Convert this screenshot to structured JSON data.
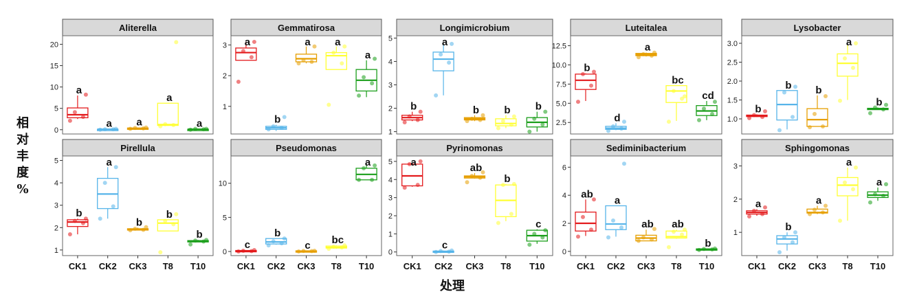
{
  "chart_data": {
    "type": "box",
    "ylabel": "相对丰度%",
    "ylabel_chars": [
      "相",
      "对",
      "丰",
      "度",
      "%"
    ],
    "xlabel": "处理",
    "categories": [
      "CK1",
      "CK2",
      "CK3",
      "T8",
      "T10"
    ],
    "colors": {
      "CK1": "#e31a1c",
      "CK2": "#56b4e9",
      "CK3": "#e69f00",
      "T8": "#ffff33",
      "T10": "#1a9e1a"
    },
    "layout": "2 rows x 5 facets",
    "panels": [
      {
        "title": "Aliterella",
        "ylim": [
          -1,
          22
        ],
        "yticks": [
          0,
          5,
          10,
          15,
          20
        ],
        "ytick_labels": [
          "0",
          "5",
          "10",
          "15",
          "20"
        ],
        "boxes": [
          {
            "group": "CK1",
            "min": 2.5,
            "q1": 2.8,
            "median": 3.5,
            "q3": 5.1,
            "max": 8.0,
            "points": [
              2.1,
              3.0,
              4.1,
              8.2
            ],
            "letter": "a"
          },
          {
            "group": "CK2",
            "min": 0.0,
            "q1": 0.0,
            "median": 0.1,
            "q3": 0.1,
            "max": 0.2,
            "points": [
              0.0,
              0.1,
              0.1,
              0.2
            ],
            "letter": "a"
          },
          {
            "group": "CK3",
            "min": 0.1,
            "q1": 0.2,
            "median": 0.3,
            "q3": 0.4,
            "max": 0.5,
            "points": [
              0.2,
              0.3,
              0.4,
              0.5
            ],
            "letter": "a"
          },
          {
            "group": "T8",
            "min": 0.9,
            "q1": 1.0,
            "median": 1.2,
            "q3": 6.2,
            "max": 6.2,
            "points": [
              0.8,
              1.1,
              1.3,
              20.5
            ],
            "letter": "a"
          },
          {
            "group": "T10",
            "min": 0.0,
            "q1": 0.0,
            "median": 0.1,
            "q3": 0.1,
            "max": 0.2,
            "points": [
              0.0,
              0.1,
              0.2,
              0.2
            ],
            "letter": "a"
          }
        ]
      },
      {
        "title": "Gemmatirosa",
        "ylim": [
          0.1,
          3.3
        ],
        "yticks": [
          1,
          2,
          3
        ],
        "ytick_labels": [
          "1",
          "2",
          "3"
        ],
        "boxes": [
          {
            "group": "CK1",
            "min": 2.5,
            "q1": 2.5,
            "median": 2.75,
            "q3": 2.9,
            "max": 3.1,
            "points": [
              1.8,
              2.6,
              2.8,
              3.1
            ],
            "letter": "a"
          },
          {
            "group": "CK2",
            "min": 0.2,
            "q1": 0.25,
            "median": 0.3,
            "q3": 0.35,
            "max": 0.4,
            "points": [
              0.25,
              0.3,
              0.35,
              0.65
            ],
            "letter": "b"
          },
          {
            "group": "CK3",
            "min": 2.4,
            "q1": 2.45,
            "median": 2.55,
            "q3": 2.7,
            "max": 2.95,
            "points": [
              2.4,
              2.45,
              2.5,
              2.95
            ],
            "letter": "a"
          },
          {
            "group": "T8",
            "min": 2.2,
            "q1": 2.2,
            "median": 2.65,
            "q3": 2.75,
            "max": 2.95,
            "points": [
              1.05,
              2.4,
              2.75,
              2.95
            ],
            "letter": "a"
          },
          {
            "group": "T10",
            "min": 1.3,
            "q1": 1.5,
            "median": 1.85,
            "q3": 2.2,
            "max": 2.5,
            "points": [
              1.35,
              1.75,
              1.95,
              2.55
            ],
            "letter": "a"
          }
        ]
      },
      {
        "title": "Longimicrobium",
        "ylim": [
          0.9,
          5.1
        ],
        "yticks": [
          1,
          2,
          3,
          4,
          5
        ],
        "ytick_labels": [
          "1",
          "2",
          "3",
          "4",
          "5"
        ],
        "boxes": [
          {
            "group": "CK1",
            "min": 1.45,
            "q1": 1.5,
            "median": 1.6,
            "q3": 1.7,
            "max": 1.85,
            "points": [
              1.4,
              1.5,
              1.65,
              1.85
            ],
            "letter": "b"
          },
          {
            "group": "CK2",
            "min": 2.55,
            "q1": 3.6,
            "median": 4.1,
            "q3": 4.4,
            "max": 4.75,
            "points": [
              2.55,
              3.95,
              4.3,
              4.75
            ],
            "letter": "a"
          },
          {
            "group": "CK3",
            "min": 1.45,
            "q1": 1.5,
            "median": 1.55,
            "q3": 1.6,
            "max": 1.7,
            "points": [
              1.45,
              1.5,
              1.55,
              1.7
            ],
            "letter": "b"
          },
          {
            "group": "T8",
            "min": 1.15,
            "q1": 1.25,
            "median": 1.35,
            "q3": 1.55,
            "max": 1.7,
            "points": [
              1.15,
              1.3,
              1.45,
              1.65
            ],
            "letter": "b"
          },
          {
            "group": "T10",
            "min": 1.0,
            "q1": 1.2,
            "median": 1.4,
            "q3": 1.6,
            "max": 1.85,
            "points": [
              1.0,
              1.3,
              1.55,
              1.85
            ],
            "letter": "b"
          }
        ]
      },
      {
        "title": "Luteitalea",
        "ylim": [
          1.0,
          13.8
        ],
        "yticks": [
          2.5,
          5.0,
          7.5,
          10.0,
          12.5
        ],
        "ytick_labels": [
          "2.5",
          "5.0",
          "7.5",
          "10.0",
          "12.5"
        ],
        "boxes": [
          {
            "group": "CK1",
            "min": 5.3,
            "q1": 6.8,
            "median": 8.0,
            "q3": 8.8,
            "max": 8.9,
            "points": [
              5.2,
              7.3,
              8.8,
              9.1
            ],
            "letter": "b"
          },
          {
            "group": "CK2",
            "min": 1.5,
            "q1": 1.6,
            "median": 1.75,
            "q3": 2.0,
            "max": 2.4,
            "points": [
              1.4,
              1.7,
              2.0,
              2.6
            ],
            "letter": "d"
          },
          {
            "group": "CK3",
            "min": 11.1,
            "q1": 11.2,
            "median": 11.35,
            "q3": 11.5,
            "max": 11.6,
            "points": [
              11.0,
              11.2,
              11.4,
              11.6
            ],
            "letter": "a"
          },
          {
            "group": "T8",
            "min": 2.7,
            "q1": 5.1,
            "median": 6.6,
            "q3": 7.3,
            "max": 7.3,
            "points": [
              2.6,
              5.6,
              6.6,
              5.9
            ],
            "letter": "bc"
          },
          {
            "group": "T10",
            "min": 2.8,
            "q1": 3.4,
            "median": 4.0,
            "q3": 4.7,
            "max": 5.3,
            "points": [
              2.8,
              3.6,
              4.3,
              5.2
            ],
            "letter": "cd"
          }
        ]
      },
      {
        "title": "Lysobacter",
        "ylim": [
          0.6,
          3.2
        ],
        "yticks": [
          1.0,
          1.5,
          2.0,
          2.5,
          3.0
        ],
        "ytick_labels": [
          "1.0",
          "1.5",
          "2.0",
          "2.5",
          "3.0"
        ],
        "boxes": [
          {
            "group": "CK1",
            "min": 1.05,
            "q1": 1.06,
            "median": 1.08,
            "q3": 1.1,
            "max": 1.12,
            "points": [
              1.02,
              1.05,
              1.1,
              1.2
            ],
            "letter": "b"
          },
          {
            "group": "CK2",
            "min": 0.72,
            "q1": 0.97,
            "median": 1.38,
            "q3": 1.75,
            "max": 1.75,
            "points": [
              0.7,
              1.05,
              1.7,
              1.85
            ],
            "letter": "b"
          },
          {
            "group": "CK3",
            "min": 0.8,
            "q1": 0.8,
            "median": 0.98,
            "q3": 1.27,
            "max": 1.62,
            "points": [
              0.78,
              0.8,
              1.13,
              1.6
            ],
            "letter": "b"
          },
          {
            "group": "T8",
            "min": 1.5,
            "q1": 2.13,
            "median": 2.47,
            "q3": 2.72,
            "max": 2.95,
            "points": [
              1.48,
              2.35,
              2.6,
              3.0
            ],
            "letter": "a"
          },
          {
            "group": "T10",
            "min": 1.25,
            "q1": 1.25,
            "median": 1.27,
            "q3": 1.28,
            "max": 1.3,
            "points": [
              1.15,
              1.25,
              1.3,
              1.37
            ],
            "letter": "b"
          }
        ]
      },
      {
        "title": "Pirellula",
        "ylim": [
          0.75,
          5.2
        ],
        "yticks": [
          1,
          2,
          3,
          4,
          5
        ],
        "ytick_labels": [
          "1",
          "2",
          "3",
          "4",
          "5"
        ],
        "boxes": [
          {
            "group": "CK1",
            "min": 1.7,
            "q1": 2.05,
            "median": 2.25,
            "q3": 2.35,
            "max": 2.4,
            "points": [
              1.7,
              2.2,
              2.3,
              2.4
            ],
            "letter": "b"
          },
          {
            "group": "CK2",
            "min": 2.4,
            "q1": 2.85,
            "median": 3.5,
            "q3": 4.2,
            "max": 4.7,
            "points": [
              2.4,
              2.95,
              4.0,
              4.7
            ],
            "letter": "a"
          },
          {
            "group": "CK3",
            "min": 1.88,
            "q1": 1.9,
            "median": 1.92,
            "q3": 1.95,
            "max": 2.0,
            "points": [
              1.88,
              1.9,
              1.95,
              2.02
            ],
            "letter": "b"
          },
          {
            "group": "T8",
            "min": 1.85,
            "q1": 1.85,
            "median": 2.2,
            "q3": 2.35,
            "max": 2.35,
            "points": [
              0.9,
              2.15,
              2.3,
              2.6
            ],
            "letter": "b"
          },
          {
            "group": "T10",
            "min": 1.35,
            "q1": 1.38,
            "median": 1.4,
            "q3": 1.42,
            "max": 1.45,
            "points": [
              1.25,
              1.38,
              1.42,
              1.45
            ],
            "letter": "b"
          }
        ]
      },
      {
        "title": "Pseudomonas",
        "ylim": [
          -0.6,
          14.0
        ],
        "yticks": [
          0,
          5,
          10
        ],
        "ytick_labels": [
          "0",
          "5",
          "10"
        ],
        "boxes": [
          {
            "group": "CK1",
            "min": 0.0,
            "q1": 0.05,
            "median": 0.1,
            "q3": 0.15,
            "max": 0.2,
            "points": [
              0.0,
              0.05,
              0.1,
              0.2
            ],
            "letter": "c"
          },
          {
            "group": "CK2",
            "min": 1.0,
            "q1": 1.1,
            "median": 1.4,
            "q3": 1.9,
            "max": 1.9,
            "points": [
              0.9,
              1.2,
              1.5,
              1.9
            ],
            "letter": "b"
          },
          {
            "group": "CK3",
            "min": 0.0,
            "q1": 0.0,
            "median": 0.05,
            "q3": 0.1,
            "max": 0.1,
            "points": [
              0.0,
              0.05,
              0.08,
              0.1
            ],
            "letter": "c"
          },
          {
            "group": "T8",
            "min": 0.4,
            "q1": 0.5,
            "median": 0.6,
            "q3": 0.8,
            "max": 0.9,
            "points": [
              0.4,
              0.6,
              0.7,
              0.9
            ],
            "letter": "bc"
          },
          {
            "group": "T10",
            "min": 10.5,
            "q1": 10.5,
            "median": 11.3,
            "q3": 12.2,
            "max": 12.8,
            "points": [
              10.5,
              10.5,
              12.2,
              12.6
            ],
            "letter": "a"
          }
        ]
      },
      {
        "title": "Pyrinomonas",
        "ylim": [
          -0.2,
          5.3
        ],
        "yticks": [
          0,
          1,
          2,
          3,
          4,
          5
        ],
        "ytick_labels": [
          "0",
          "1",
          "2",
          "3",
          "4",
          "5"
        ],
        "boxes": [
          {
            "group": "CK1",
            "min": 3.6,
            "q1": 3.65,
            "median": 4.2,
            "q3": 4.85,
            "max": 4.9,
            "points": [
              3.55,
              3.7,
              4.85,
              5.0
            ],
            "letter": "a"
          },
          {
            "group": "CK2",
            "min": 0.0,
            "q1": 0.0,
            "median": 0.02,
            "q3": 0.05,
            "max": 0.08,
            "points": [
              0.0,
              0.02,
              0.05,
              0.08
            ],
            "letter": "c"
          },
          {
            "group": "CK3",
            "min": 4.05,
            "q1": 4.08,
            "median": 4.15,
            "q3": 4.2,
            "max": 4.35,
            "points": [
              3.85,
              4.1,
              4.2,
              4.4
            ],
            "letter": "ab"
          },
          {
            "group": "T8",
            "min": 1.7,
            "q1": 1.95,
            "median": 2.85,
            "q3": 3.7,
            "max": 3.75,
            "points": [
              1.6,
              2.1,
              3.7,
              3.75
            ],
            "letter": "b"
          },
          {
            "group": "T10",
            "min": 0.45,
            "q1": 0.6,
            "median": 0.9,
            "q3": 1.2,
            "max": 1.25,
            "points": [
              0.4,
              0.8,
              1.0,
              1.2
            ],
            "letter": "c"
          }
        ]
      },
      {
        "title": "Sediminibacterium",
        "ylim": [
          -0.3,
          6.8
        ],
        "yticks": [
          0,
          2,
          4,
          6
        ],
        "ytick_labels": [
          "0",
          "2",
          "4",
          "6"
        ],
        "boxes": [
          {
            "group": "CK1",
            "min": 1.1,
            "q1": 1.45,
            "median": 2.0,
            "q3": 2.8,
            "max": 3.7,
            "points": [
              1.05,
              1.55,
              2.45,
              3.7
            ],
            "letter": "ab"
          },
          {
            "group": "CK2",
            "min": 1.05,
            "q1": 1.55,
            "median": 1.95,
            "q3": 3.25,
            "max": 3.25,
            "points": [
              1.0,
              1.7,
              2.2,
              6.25
            ],
            "letter": "a"
          },
          {
            "group": "CK3",
            "min": 0.75,
            "q1": 0.75,
            "median": 0.95,
            "q3": 1.15,
            "max": 1.55,
            "points": [
              0.75,
              0.85,
              1.0,
              1.6
            ],
            "letter": "ab"
          },
          {
            "group": "T8",
            "min": 0.9,
            "q1": 0.95,
            "median": 1.05,
            "q3": 1.45,
            "max": 1.55,
            "points": [
              0.3,
              1.2,
              1.4,
              1.55
            ],
            "letter": "ab"
          },
          {
            "group": "T10",
            "min": 0.1,
            "q1": 0.12,
            "median": 0.15,
            "q3": 0.18,
            "max": 0.2,
            "points": [
              0.1,
              0.14,
              0.17,
              0.2
            ],
            "letter": "b"
          }
        ]
      },
      {
        "title": "Sphingomonas",
        "ylim": [
          0.3,
          3.3
        ],
        "yticks": [
          1,
          2,
          3
        ],
        "ytick_labels": [
          "1",
          "2",
          "3"
        ],
        "boxes": [
          {
            "group": "CK1",
            "min": 1.5,
            "q1": 1.55,
            "median": 1.6,
            "q3": 1.65,
            "max": 1.7,
            "points": [
              1.48,
              1.55,
              1.65,
              1.75
            ],
            "letter": "a"
          },
          {
            "group": "CK2",
            "min": 0.45,
            "q1": 0.65,
            "median": 0.8,
            "q3": 0.9,
            "max": 1.0,
            "points": [
              0.4,
              0.7,
              0.85,
              1.0
            ],
            "letter": "b"
          },
          {
            "group": "CK3",
            "min": 1.55,
            "q1": 1.58,
            "median": 1.6,
            "q3": 1.7,
            "max": 1.8,
            "points": [
              1.55,
              1.6,
              1.68,
              1.8
            ],
            "letter": "a"
          },
          {
            "group": "T8",
            "min": 1.35,
            "q1": 2.1,
            "median": 2.42,
            "q3": 2.65,
            "max": 2.95,
            "points": [
              1.35,
              2.3,
              2.5,
              2.95
            ],
            "letter": "a"
          },
          {
            "group": "T10",
            "min": 1.95,
            "q1": 2.05,
            "median": 2.12,
            "q3": 2.22,
            "max": 2.35,
            "points": [
              1.9,
              2.1,
              2.15,
              2.45
            ],
            "letter": "a"
          }
        ]
      }
    ]
  }
}
